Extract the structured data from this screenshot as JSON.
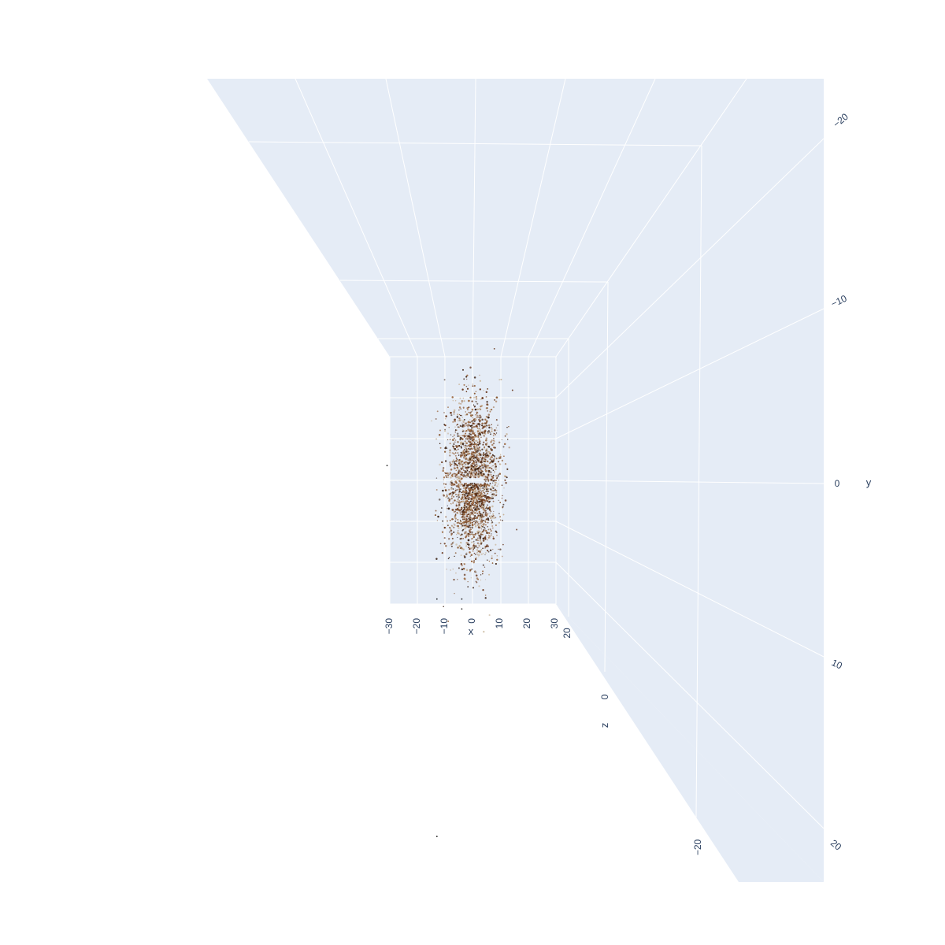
{
  "chart_data": {
    "type": "scatter",
    "dimensions": 3,
    "axes": {
      "x": {
        "title": "x",
        "ticks": [
          "−30",
          "−20",
          "−10",
          "0",
          "10",
          "20",
          "30"
        ]
      },
      "y": {
        "title": "y",
        "ticks": [
          "−20",
          "−10",
          "0",
          "10",
          "20"
        ]
      },
      "z": {
        "title": "z",
        "ticks": [
          "20",
          "0",
          "−20"
        ]
      }
    },
    "x_range": [
      -30,
      30
    ],
    "y_range": [
      -25,
      25
    ],
    "z_range": [
      -25,
      25
    ],
    "grid": true,
    "colors": {
      "plot_background": "#e5ecf6",
      "grid": "#ffffff",
      "tick_text": "#2a3f5f",
      "marker_primary": "#6b3a1f",
      "marker_secondary": "#a0704a",
      "marker_light": "#c8b49a"
    },
    "point_cloud": {
      "center": {
        "x": 0,
        "y": 0
      },
      "spread": {
        "x": 4.5,
        "y": 8
      },
      "approx_points": 3500
    }
  }
}
